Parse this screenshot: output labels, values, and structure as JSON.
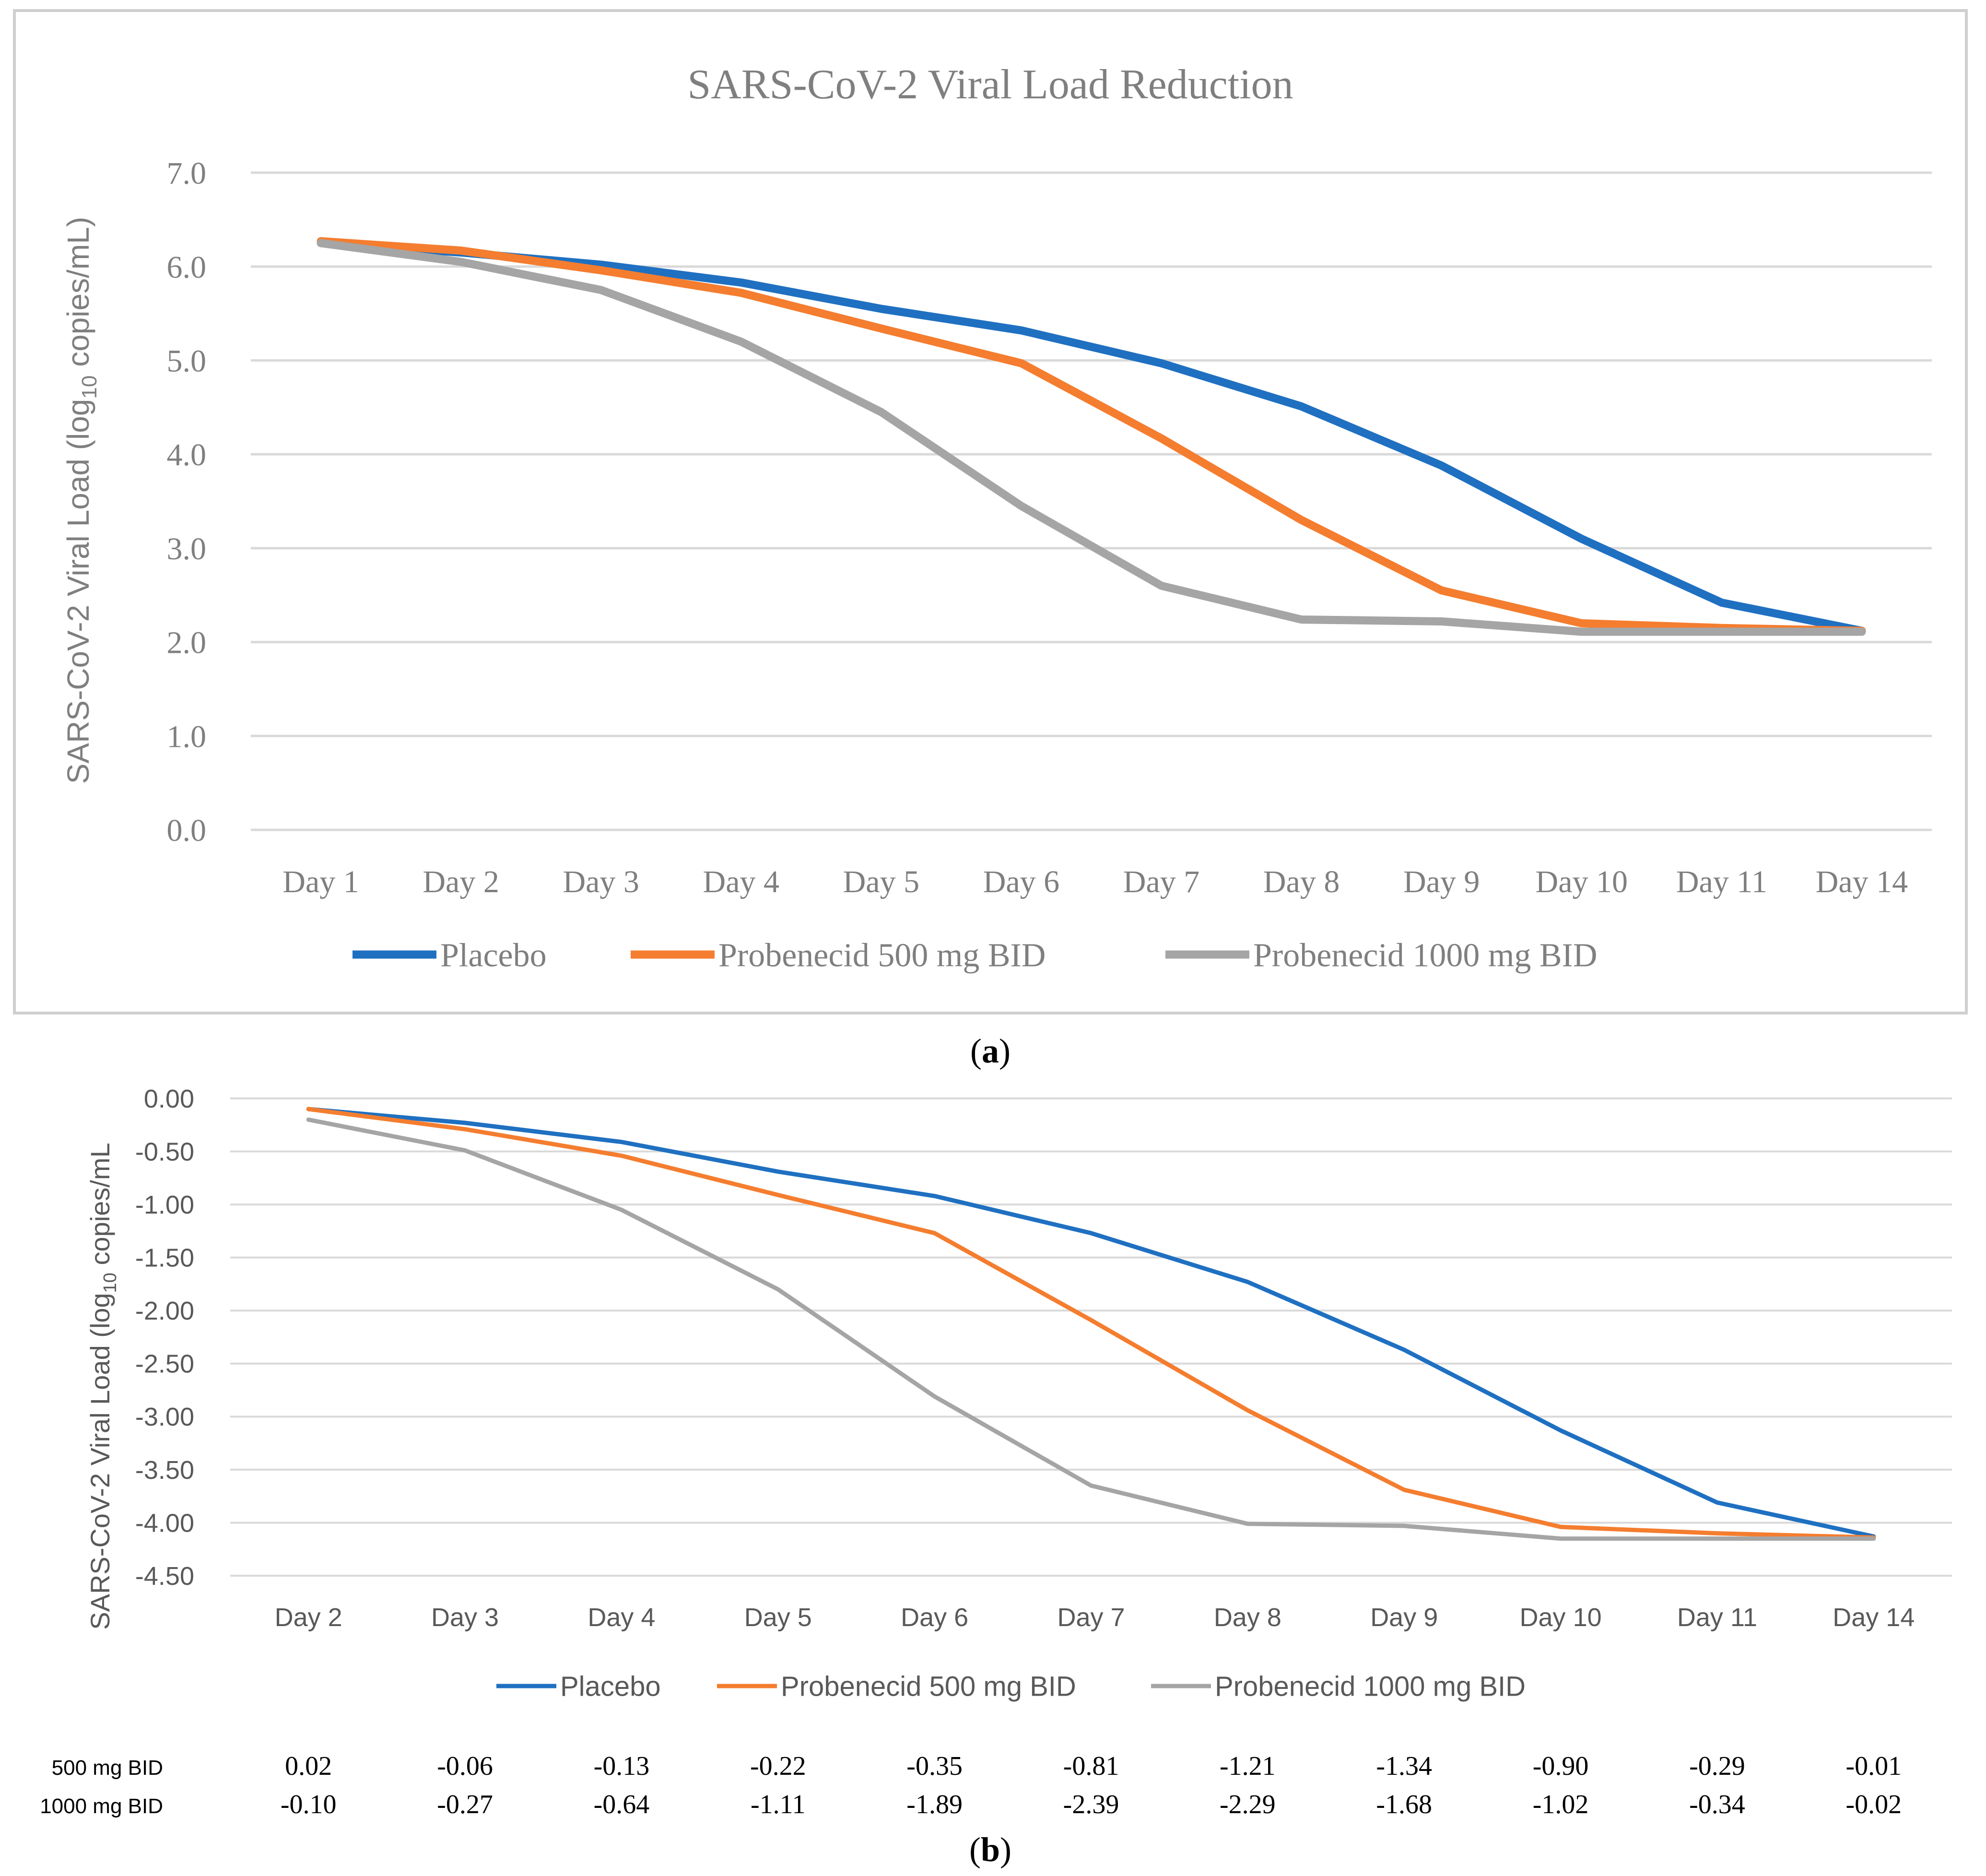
{
  "colors": {
    "placebo": "#1f70c1",
    "p500": "#f47d2f",
    "p1000": "#a5a5a5",
    "grid": "#d9d9d9",
    "text_a": "#7f7f7f",
    "text_b": "#595959",
    "frame": "#cfcfcf"
  },
  "chart_data": [
    {
      "type": "line",
      "panel_label": "a",
      "title": "SARS-CoV-2 Viral Load Reduction",
      "ylabel_parts": [
        "SARS-CoV-2 Viral Load (log",
        "10",
        " copies/mL)"
      ],
      "ylim": [
        0,
        7
      ],
      "yticks": [
        "0.0",
        "1.0",
        "2.0",
        "3.0",
        "4.0",
        "5.0",
        "6.0",
        "7.0"
      ],
      "categories": [
        "Day 1",
        "Day 2",
        "Day 3",
        "Day 4",
        "Day 5",
        "Day 6",
        "Day 7",
        "Day 8",
        "Day 9",
        "Day 10",
        "Day 11",
        "Day 14"
      ],
      "series": [
        {
          "name": "Placebo",
          "color_key": "placebo",
          "values": [
            6.25,
            6.15,
            6.02,
            5.83,
            5.55,
            5.32,
            4.97,
            4.51,
            3.88,
            3.1,
            2.42,
            2.12
          ]
        },
        {
          "name": "Probenecid 500 mg BID",
          "color_key": "p500",
          "values": [
            6.27,
            6.17,
            5.96,
            5.72,
            5.34,
            4.97,
            4.17,
            3.3,
            2.55,
            2.2,
            2.15,
            2.12
          ]
        },
        {
          "name": "Probenecid 1000 mg BID",
          "color_key": "p1000",
          "values": [
            6.25,
            6.05,
            5.75,
            5.2,
            4.45,
            3.45,
            2.6,
            2.24,
            2.22,
            2.11,
            2.11,
            2.11
          ]
        }
      ],
      "legend": "bottom"
    },
    {
      "type": "line",
      "panel_label": "b",
      "ylabel_parts": [
        "SARS-CoV-2 Viral Load (log",
        "10",
        " copies/mL"
      ],
      "ylim": [
        -4.5,
        0
      ],
      "yticks": [
        "0.00",
        "-0.50",
        "-1.00",
        "-1.50",
        "-2.00",
        "-2.50",
        "-3.00",
        "-3.50",
        "-4.00",
        "-4.50"
      ],
      "categories": [
        "Day 2",
        "Day 3",
        "Day 4",
        "Day 5",
        "Day 6",
        "Day 7",
        "Day 8",
        "Day 9",
        "Day 10",
        "Day 11",
        "Day 14"
      ],
      "series": [
        {
          "name": "Placebo",
          "color_key": "placebo",
          "values": [
            -0.1,
            -0.23,
            -0.41,
            -0.69,
            -0.92,
            -1.27,
            -1.73,
            -2.37,
            -3.13,
            -3.81,
            -4.13
          ]
        },
        {
          "name": "Probenecid 500 mg BID",
          "color_key": "p500",
          "values": [
            -0.1,
            -0.29,
            -0.54,
            -0.91,
            -1.27,
            -2.09,
            -2.94,
            -3.69,
            -4.04,
            -4.1,
            -4.14
          ]
        },
        {
          "name": "Probenecid 1000 mg BID",
          "color_key": "p1000",
          "values": [
            -0.2,
            -0.49,
            -1.05,
            -1.8,
            -2.81,
            -3.65,
            -4.01,
            -4.03,
            -4.15,
            -4.15,
            -4.15
          ]
        }
      ],
      "legend": "bottom",
      "table": {
        "rows": [
          {
            "label": "500 mg BID",
            "values": [
              "0.02",
              "-0.06",
              "-0.13",
              "-0.22",
              "-0.35",
              "-0.81",
              "-1.21",
              "-1.34",
              "-0.90",
              "-0.29",
              "-0.01"
            ]
          },
          {
            "label": "1000 mg BID",
            "values": [
              "-0.10",
              "-0.27",
              "-0.64",
              "-1.11",
              "-1.89",
              "-2.39",
              "-2.29",
              "-1.68",
              "-1.02",
              "-0.34",
              "-0.02"
            ]
          }
        ]
      }
    }
  ]
}
